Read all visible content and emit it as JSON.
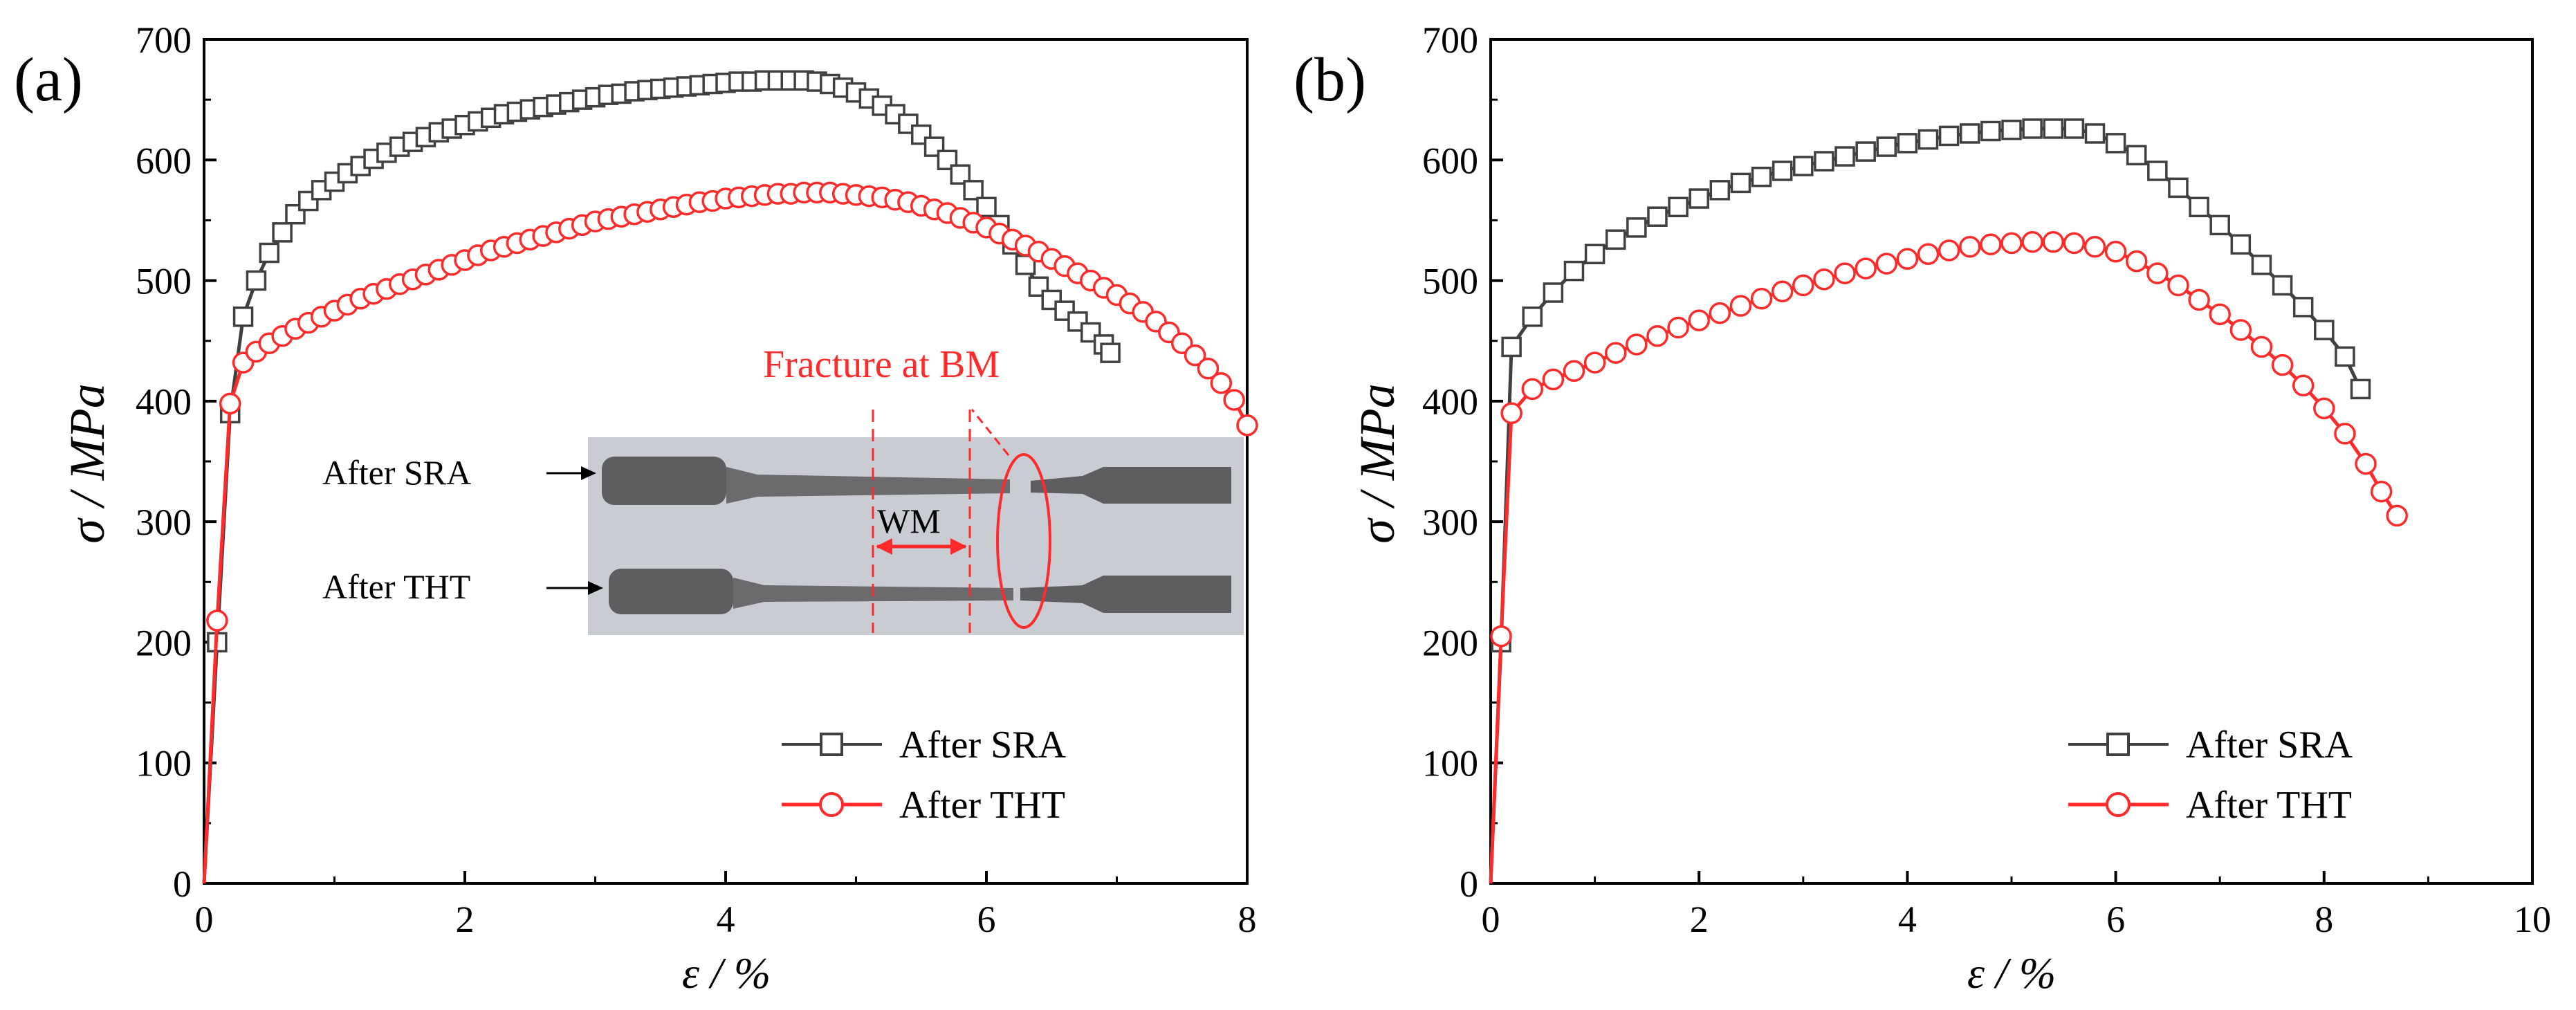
{
  "figure": {
    "panels": [
      "(a)",
      "(b)"
    ]
  },
  "chart_data": [
    {
      "type": "line",
      "panel_label": "(a)",
      "xlabel": "ε / %",
      "ylabel": "σ / MPa",
      "xlim": [
        0,
        8
      ],
      "ylim": [
        0,
        700
      ],
      "xticks": [
        0,
        2,
        4,
        6,
        8
      ],
      "yticks": [
        0,
        100,
        200,
        300,
        400,
        500,
        600,
        700
      ],
      "legend": {
        "position": "bottom-right",
        "entries": [
          "After SRA",
          "After THT"
        ]
      },
      "series": [
        {
          "name": "After SRA",
          "color": "#404040",
          "marker": "square",
          "x": [
            0,
            0.1,
            0.2,
            0.3,
            0.4,
            0.5,
            0.6,
            0.7,
            0.8,
            0.9,
            1.0,
            1.1,
            1.2,
            1.3,
            1.4,
            1.5,
            1.6,
            1.7,
            1.8,
            1.9,
            2.0,
            2.1,
            2.2,
            2.3,
            2.4,
            2.5,
            2.6,
            2.7,
            2.8,
            2.9,
            3.0,
            3.1,
            3.2,
            3.3,
            3.4,
            3.5,
            3.6,
            3.7,
            3.8,
            3.9,
            4.0,
            4.1,
            4.2,
            4.3,
            4.4,
            4.5,
            4.6,
            4.7,
            4.8,
            4.9,
            5.0,
            5.1,
            5.2,
            5.3,
            5.4,
            5.5,
            5.6,
            5.7,
            5.8,
            5.9,
            6.0,
            6.1,
            6.2,
            6.3,
            6.4,
            6.5,
            6.6,
            6.7,
            6.8,
            6.9,
            6.95
          ],
          "y": [
            0,
            200,
            390,
            470,
            500,
            523,
            540,
            555,
            566,
            575,
            582,
            589,
            595,
            601,
            606,
            611,
            615,
            619,
            623,
            626,
            629,
            632,
            635,
            638,
            640,
            642,
            644,
            646,
            648,
            650,
            652,
            654,
            655,
            657,
            658,
            659,
            660,
            661,
            662,
            663,
            664,
            665,
            665,
            666,
            666,
            666,
            666,
            665,
            663,
            660,
            656,
            651,
            645,
            638,
            630,
            621,
            611,
            600,
            588,
            575,
            561,
            546,
            530,
            513,
            495,
            484,
            475,
            466,
            457,
            447,
            440
          ]
        },
        {
          "name": "After THT",
          "color": "#ff2a2a",
          "marker": "circle",
          "x": [
            0,
            0.1,
            0.2,
            0.3,
            0.4,
            0.5,
            0.6,
            0.7,
            0.8,
            0.9,
            1.0,
            1.1,
            1.2,
            1.3,
            1.4,
            1.5,
            1.6,
            1.7,
            1.8,
            1.9,
            2.0,
            2.1,
            2.2,
            2.3,
            2.4,
            2.5,
            2.6,
            2.7,
            2.8,
            2.9,
            3.0,
            3.1,
            3.2,
            3.3,
            3.4,
            3.5,
            3.6,
            3.7,
            3.8,
            3.9,
            4.0,
            4.1,
            4.2,
            4.3,
            4.4,
            4.5,
            4.6,
            4.7,
            4.8,
            4.9,
            5.0,
            5.1,
            5.2,
            5.3,
            5.4,
            5.5,
            5.6,
            5.7,
            5.8,
            5.9,
            6.0,
            6.1,
            6.2,
            6.3,
            6.4,
            6.5,
            6.6,
            6.7,
            6.8,
            6.9,
            7.0,
            7.1,
            7.2,
            7.3,
            7.4,
            7.5,
            7.6,
            7.7,
            7.8,
            7.9,
            8.0
          ],
          "y": [
            0,
            218,
            398,
            432,
            441,
            448,
            454,
            460,
            465,
            470,
            475,
            480,
            485,
            489,
            493,
            497,
            501,
            505,
            509,
            513,
            517,
            521,
            525,
            528,
            531,
            534,
            537,
            540,
            543,
            546,
            549,
            551,
            553,
            555,
            557,
            559,
            561,
            563,
            565,
            566,
            568,
            569,
            570,
            571,
            572,
            572,
            573,
            573,
            573,
            572,
            571,
            570,
            569,
            567,
            565,
            562,
            559,
            556,
            552,
            548,
            544,
            539,
            534,
            529,
            524,
            518,
            512,
            506,
            500,
            494,
            488,
            481,
            474,
            466,
            457,
            448,
            438,
            427,
            415,
            401,
            380
          ]
        }
      ],
      "inset": {
        "title": "Fracture at BM",
        "labels": [
          "After SRA",
          "After THT",
          "WM"
        ]
      }
    },
    {
      "type": "line",
      "panel_label": "(b)",
      "xlabel": "ε / %",
      "ylabel": "σ / MPa",
      "xlim": [
        0,
        10
      ],
      "ylim": [
        0,
        700
      ],
      "xticks": [
        0,
        2,
        4,
        6,
        8,
        10
      ],
      "yticks": [
        0,
        100,
        200,
        300,
        400,
        500,
        600,
        700
      ],
      "legend": {
        "position": "bottom-right",
        "entries": [
          "After SRA",
          "After THT"
        ]
      },
      "series": [
        {
          "name": "After SRA",
          "color": "#404040",
          "marker": "square",
          "x": [
            0,
            0.1,
            0.2,
            0.4,
            0.6,
            0.8,
            1.0,
            1.2,
            1.4,
            1.6,
            1.8,
            2.0,
            2.2,
            2.4,
            2.6,
            2.8,
            3.0,
            3.2,
            3.4,
            3.6,
            3.8,
            4.0,
            4.2,
            4.4,
            4.6,
            4.8,
            5.0,
            5.2,
            5.4,
            5.6,
            5.8,
            6.0,
            6.2,
            6.4,
            6.6,
            6.8,
            7.0,
            7.2,
            7.4,
            7.6,
            7.8,
            8.0,
            8.2,
            8.35
          ],
          "y": [
            0,
            200,
            445,
            470,
            490,
            508,
            522,
            534,
            544,
            553,
            561,
            568,
            575,
            581,
            586,
            591,
            595,
            599,
            603,
            607,
            611,
            614,
            617,
            620,
            622,
            624,
            625,
            626,
            626,
            626,
            622,
            614,
            604,
            591,
            577,
            561,
            546,
            530,
            513,
            496,
            478,
            459,
            437,
            410
          ]
        },
        {
          "name": "After THT",
          "color": "#ff2a2a",
          "marker": "circle",
          "x": [
            0,
            0.1,
            0.2,
            0.4,
            0.6,
            0.8,
            1.0,
            1.2,
            1.4,
            1.6,
            1.8,
            2.0,
            2.2,
            2.4,
            2.6,
            2.8,
            3.0,
            3.2,
            3.4,
            3.6,
            3.8,
            4.0,
            4.2,
            4.4,
            4.6,
            4.8,
            5.0,
            5.2,
            5.4,
            5.6,
            5.8,
            6.0,
            6.2,
            6.4,
            6.6,
            6.8,
            7.0,
            7.2,
            7.4,
            7.6,
            7.8,
            8.0,
            8.2,
            8.4,
            8.55,
            8.7
          ],
          "y": [
            0,
            205,
            390,
            410,
            418,
            425,
            432,
            440,
            447,
            454,
            461,
            467,
            473,
            479,
            485,
            491,
            496,
            501,
            506,
            510,
            514,
            518,
            522,
            525,
            528,
            530,
            531,
            532,
            532,
            531,
            528,
            524,
            516,
            506,
            496,
            484,
            472,
            459,
            445,
            430,
            413,
            394,
            373,
            348,
            325,
            305
          ]
        }
      ]
    }
  ]
}
